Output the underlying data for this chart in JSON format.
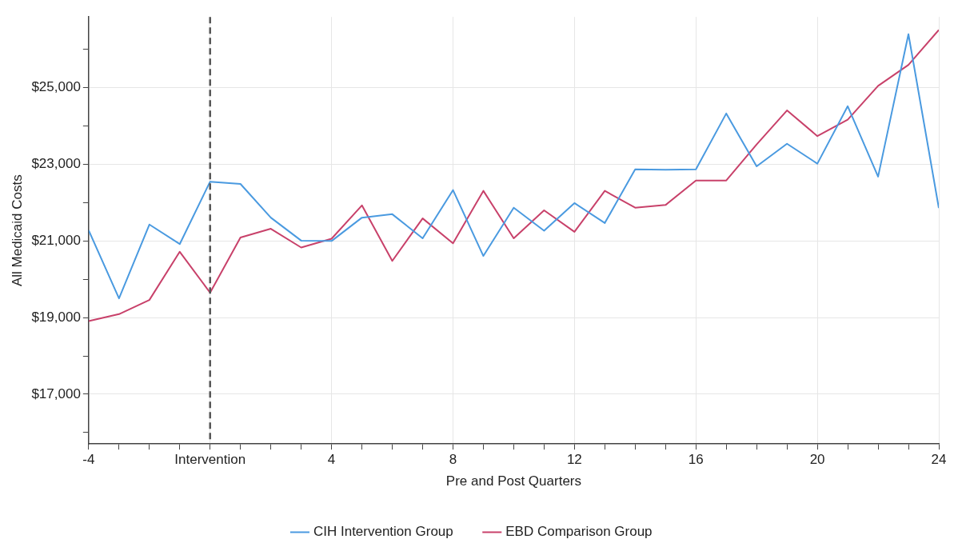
{
  "chart_data": {
    "type": "line",
    "xlabel": "Pre and Post Quarters",
    "ylabel": "All Medicaid Costs",
    "x": [
      -4,
      -3,
      -2,
      -1,
      0,
      1,
      2,
      3,
      4,
      5,
      6,
      7,
      8,
      9,
      10,
      11,
      12,
      13,
      14,
      15,
      16,
      17,
      18,
      19,
      20,
      21,
      22,
      23,
      24
    ],
    "series": [
      {
        "name": "CIH Intervention Group",
        "color": "#4a9ae0",
        "values": [
          21280,
          19500,
          21430,
          20920,
          22550,
          22490,
          21610,
          21010,
          21000,
          21610,
          21700,
          21070,
          22330,
          20610,
          21870,
          21270,
          21990,
          21470,
          22870,
          22860,
          22870,
          24330,
          22950,
          23540,
          23020,
          24520,
          22680,
          26400,
          21860
        ]
      },
      {
        "name": "EBD Comparison Group",
        "color": "#c8416a",
        "values": [
          18910,
          19090,
          19460,
          20720,
          19650,
          21090,
          21320,
          20830,
          21060,
          21930,
          20480,
          21590,
          20940,
          22310,
          21070,
          21800,
          21240,
          22310,
          21870,
          21940,
          22580,
          22580,
          23520,
          24410,
          23740,
          24170,
          25050,
          25600,
          26510
        ]
      }
    ],
    "xlim": [
      -4,
      24
    ],
    "xticks": [
      -4,
      {
        "value": -3,
        "label": null
      },
      {
        "value": -2,
        "label": null
      },
      {
        "value": -1,
        "label": null
      },
      {
        "value": 0,
        "label": "Intervention"
      },
      {
        "value": 1,
        "label": null
      },
      {
        "value": 2,
        "label": null
      },
      {
        "value": 3,
        "label": null
      },
      4,
      {
        "value": 5,
        "label": null
      },
      {
        "value": 6,
        "label": null
      },
      {
        "value": 7,
        "label": null
      },
      8,
      {
        "value": 9,
        "label": null
      },
      {
        "value": 10,
        "label": null
      },
      {
        "value": 11,
        "label": null
      },
      12,
      {
        "value": 13,
        "label": null
      },
      {
        "value": 14,
        "label": null
      },
      {
        "value": 15,
        "label": null
      },
      16,
      {
        "value": 17,
        "label": null
      },
      {
        "value": 18,
        "label": null
      },
      {
        "value": 19,
        "label": null
      },
      20,
      {
        "value": 21,
        "label": null
      },
      {
        "value": 22,
        "label": null
      },
      {
        "value": 23,
        "label": null
      },
      24
    ],
    "ylim": [
      15700,
      26850
    ],
    "yticks": [
      {
        "value": 16000,
        "label": null
      },
      {
        "value": 17000,
        "label": "$17,000"
      },
      {
        "value": 18000,
        "label": null
      },
      {
        "value": 19000,
        "label": "$19,000"
      },
      {
        "value": 20000,
        "label": null
      },
      {
        "value": 21000,
        "label": "$21,000"
      },
      {
        "value": 22000,
        "label": null
      },
      {
        "value": 23000,
        "label": "$23,000"
      },
      {
        "value": 24000,
        "label": null
      },
      {
        "value": 25000,
        "label": "$25,000"
      },
      {
        "value": 26000,
        "label": null
      }
    ],
    "ref_lines": [
      {
        "axis": "x",
        "value": 0,
        "color": "#555555",
        "line_style": "dashed"
      }
    ],
    "grid": true,
    "legend": "bottom",
    "marker": "none",
    "line_style": "solid"
  }
}
